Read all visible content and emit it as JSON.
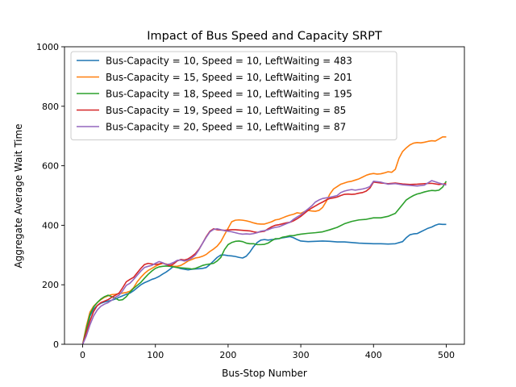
{
  "chart_data": {
    "type": "line",
    "title": "Impact of Bus Speed and Capacity SRPT",
    "xlabel": "Bus-Stop Number",
    "ylabel": "Aggregate Average Wait Time",
    "xlim": [
      -25,
      525
    ],
    "ylim": [
      0,
      1000
    ],
    "xticks": [
      "0",
      "100",
      "200",
      "300",
      "400",
      "500"
    ],
    "xtick_values": [
      0,
      100,
      200,
      300,
      400,
      500
    ],
    "yticks": [
      "0",
      "200",
      "400",
      "600",
      "800",
      "1000"
    ],
    "ytick_values": [
      0,
      200,
      400,
      600,
      800,
      1000
    ],
    "grid": false,
    "legend_position": "top-left",
    "series": [
      {
        "name": "Bus-Capacity = 10, Speed = 10, LeftWaiting = 483",
        "color": "#1f77b4",
        "x": [
          0,
          5,
          10,
          15,
          20,
          25,
          30,
          35,
          40,
          45,
          50,
          55,
          60,
          65,
          70,
          75,
          80,
          85,
          90,
          95,
          100,
          105,
          110,
          115,
          120,
          125,
          130,
          135,
          140,
          145,
          150,
          155,
          160,
          165,
          170,
          175,
          180,
          185,
          190,
          195,
          200,
          205,
          210,
          215,
          220,
          225,
          230,
          235,
          240,
          245,
          250,
          255,
          260,
          265,
          270,
          275,
          280,
          285,
          290,
          295,
          300,
          310,
          320,
          330,
          340,
          350,
          360,
          370,
          380,
          390,
          400,
          410,
          420,
          430,
          440,
          445,
          450,
          455,
          460,
          465,
          470,
          475,
          480,
          485,
          490,
          495,
          500
        ],
        "values": [
          0,
          45,
          95,
          118,
          130,
          138,
          142,
          145,
          148,
          152,
          158,
          163,
          168,
          172,
          180,
          190,
          200,
          207,
          212,
          218,
          222,
          228,
          236,
          243,
          252,
          262,
          258,
          254,
          252,
          250,
          252,
          253,
          254,
          255,
          258,
          268,
          280,
          292,
          300,
          300,
          298,
          297,
          295,
          292,
          290,
          296,
          310,
          328,
          342,
          350,
          352,
          350,
          352,
          353,
          355,
          358,
          360,
          362,
          358,
          352,
          347,
          345,
          346,
          347,
          346,
          344,
          344,
          342,
          340,
          339,
          338,
          338,
          337,
          338,
          345,
          358,
          368,
          371,
          372,
          378,
          384,
          390,
          394,
          400,
          404,
          403,
          403
        ]
      },
      {
        "name": "Bus-Capacity = 15, Speed = 10, LeftWaiting = 201",
        "color": "#ff7f0e",
        "x": [
          0,
          5,
          10,
          15,
          20,
          25,
          30,
          35,
          40,
          45,
          50,
          55,
          60,
          65,
          70,
          75,
          80,
          85,
          90,
          95,
          100,
          105,
          110,
          115,
          120,
          125,
          130,
          135,
          140,
          145,
          150,
          155,
          160,
          165,
          170,
          175,
          180,
          185,
          190,
          195,
          200,
          205,
          210,
          215,
          220,
          225,
          230,
          235,
          240,
          245,
          250,
          255,
          260,
          265,
          270,
          275,
          280,
          285,
          290,
          295,
          300,
          305,
          310,
          315,
          320,
          325,
          330,
          335,
          340,
          345,
          350,
          355,
          360,
          365,
          370,
          375,
          380,
          385,
          390,
          395,
          400,
          405,
          410,
          415,
          420,
          425,
          430,
          435,
          440,
          445,
          450,
          455,
          460,
          465,
          470,
          475,
          480,
          485,
          490,
          495,
          500
        ],
        "values": [
          0,
          60,
          108,
          128,
          140,
          150,
          158,
          163,
          167,
          168,
          170,
          172,
          174,
          178,
          190,
          210,
          225,
          238,
          248,
          255,
          262,
          268,
          272,
          270,
          266,
          262,
          262,
          265,
          272,
          280,
          285,
          290,
          292,
          296,
          302,
          312,
          320,
          330,
          345,
          368,
          390,
          412,
          417,
          418,
          417,
          415,
          412,
          408,
          405,
          404,
          404,
          408,
          412,
          418,
          420,
          425,
          430,
          434,
          437,
          442,
          440,
          446,
          450,
          448,
          447,
          450,
          460,
          480,
          505,
          522,
          530,
          538,
          542,
          546,
          548,
          552,
          556,
          562,
          568,
          572,
          574,
          572,
          573,
          576,
          580,
          578,
          588,
          625,
          648,
          660,
          670,
          676,
          678,
          677,
          679,
          682,
          684,
          683,
          690,
          697,
          697
        ]
      },
      {
        "name": "Bus-Capacity = 18, Speed = 10, LeftWaiting = 195",
        "color": "#2ca02c",
        "x": [
          0,
          5,
          10,
          15,
          20,
          25,
          30,
          35,
          40,
          45,
          50,
          55,
          60,
          65,
          70,
          75,
          80,
          85,
          90,
          95,
          100,
          105,
          110,
          115,
          120,
          125,
          130,
          135,
          140,
          145,
          150,
          155,
          160,
          165,
          170,
          175,
          180,
          185,
          190,
          195,
          200,
          205,
          210,
          215,
          220,
          225,
          230,
          235,
          240,
          245,
          250,
          255,
          260,
          265,
          270,
          275,
          280,
          285,
          290,
          295,
          300,
          310,
          320,
          330,
          340,
          350,
          360,
          370,
          380,
          390,
          400,
          410,
          420,
          430,
          440,
          445,
          450,
          455,
          460,
          465,
          470,
          475,
          480,
          485,
          490,
          495,
          500
        ],
        "values": [
          0,
          52,
          100,
          125,
          140,
          152,
          160,
          165,
          160,
          155,
          148,
          150,
          160,
          175,
          188,
          198,
          208,
          222,
          235,
          246,
          255,
          260,
          262,
          263,
          262,
          260,
          258,
          257,
          256,
          255,
          253,
          255,
          260,
          265,
          268,
          270,
          272,
          280,
          292,
          318,
          335,
          342,
          346,
          347,
          345,
          340,
          338,
          338,
          335,
          335,
          336,
          340,
          348,
          355,
          355,
          360,
          362,
          365,
          365,
          368,
          370,
          373,
          375,
          378,
          385,
          393,
          405,
          413,
          418,
          420,
          425,
          425,
          430,
          440,
          470,
          485,
          493,
          500,
          505,
          508,
          512,
          515,
          517,
          516,
          518,
          528,
          548
        ]
      },
      {
        "name": "Bus-Capacity = 19, Speed = 10, LeftWaiting = 85",
        "color": "#d62728",
        "x": [
          0,
          5,
          10,
          15,
          20,
          25,
          30,
          35,
          40,
          45,
          50,
          55,
          60,
          65,
          70,
          75,
          80,
          85,
          90,
          95,
          100,
          105,
          110,
          115,
          120,
          125,
          130,
          135,
          140,
          145,
          150,
          155,
          160,
          165,
          170,
          175,
          180,
          185,
          190,
          195,
          200,
          205,
          210,
          215,
          220,
          225,
          230,
          235,
          240,
          245,
          250,
          255,
          260,
          265,
          270,
          275,
          280,
          285,
          290,
          295,
          300,
          305,
          310,
          315,
          320,
          325,
          330,
          335,
          340,
          345,
          350,
          355,
          360,
          365,
          370,
          375,
          380,
          385,
          390,
          395,
          400,
          410,
          420,
          430,
          440,
          450,
          460,
          470,
          480,
          490,
          500
        ],
        "values": [
          0,
          40,
          78,
          110,
          130,
          140,
          145,
          150,
          158,
          165,
          172,
          190,
          210,
          218,
          225,
          240,
          255,
          268,
          272,
          270,
          268,
          270,
          273,
          268,
          264,
          270,
          280,
          285,
          283,
          287,
          295,
          305,
          320,
          340,
          362,
          380,
          388,
          385,
          384,
          383,
          384,
          385,
          385,
          384,
          383,
          382,
          381,
          378,
          376,
          378,
          380,
          388,
          395,
          400,
          402,
          405,
          408,
          410,
          415,
          422,
          430,
          440,
          450,
          458,
          465,
          472,
          478,
          485,
          490,
          492,
          495,
          500,
          504,
          505,
          504,
          505,
          508,
          510,
          515,
          525,
          545,
          542,
          540,
          542,
          539,
          537,
          538,
          540,
          541,
          537,
          540
        ]
      },
      {
        "name": "Bus-Capacity = 20, Speed = 10, LeftWaiting = 87",
        "color": "#9467bd",
        "x": [
          0,
          5,
          10,
          15,
          20,
          25,
          30,
          35,
          40,
          45,
          50,
          55,
          60,
          65,
          70,
          75,
          80,
          85,
          90,
          95,
          100,
          105,
          110,
          115,
          120,
          125,
          130,
          135,
          140,
          145,
          150,
          155,
          160,
          165,
          170,
          175,
          180,
          185,
          190,
          195,
          200,
          205,
          210,
          215,
          220,
          225,
          230,
          235,
          240,
          245,
          250,
          255,
          260,
          265,
          270,
          275,
          280,
          285,
          290,
          295,
          300,
          305,
          310,
          315,
          320,
          325,
          330,
          335,
          340,
          345,
          350,
          355,
          360,
          365,
          370,
          375,
          380,
          385,
          390,
          395,
          400,
          410,
          420,
          430,
          440,
          450,
          460,
          470,
          480,
          490,
          500
        ],
        "values": [
          0,
          28,
          65,
          95,
          115,
          128,
          135,
          140,
          148,
          158,
          165,
          180,
          198,
          205,
          218,
          232,
          246,
          258,
          262,
          265,
          272,
          278,
          274,
          268,
          270,
          275,
          282,
          283,
          280,
          283,
          290,
          300,
          318,
          340,
          360,
          378,
          386,
          388,
          385,
          382,
          380,
          378,
          375,
          372,
          370,
          371,
          370,
          372,
          375,
          380,
          382,
          385,
          390,
          393,
          395,
          400,
          405,
          410,
          420,
          428,
          435,
          445,
          455,
          465,
          478,
          485,
          490,
          492,
          494,
          497,
          500,
          510,
          515,
          518,
          520,
          518,
          520,
          522,
          525,
          530,
          548,
          545,
          538,
          540,
          536,
          534,
          532,
          535,
          550,
          542,
          535
        ]
      }
    ]
  }
}
